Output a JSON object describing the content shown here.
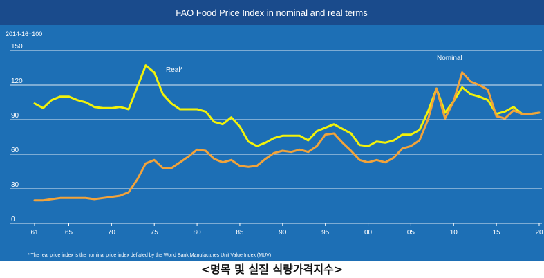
{
  "chart_data": {
    "type": "line",
    "title": "FAO Food Price Index in nominal and real terms",
    "ylabel": "2014-16=100",
    "yticks": [
      0,
      30,
      60,
      90,
      120,
      150
    ],
    "ylim": [
      0,
      150
    ],
    "xlim": [
      1961,
      2020
    ],
    "xtick_labels": [
      {
        "year": 1961,
        "label": "61"
      },
      {
        "year": 1965,
        "label": "65"
      },
      {
        "year": 1970,
        "label": "70"
      },
      {
        "year": 1975,
        "label": "75"
      },
      {
        "year": 1980,
        "label": "80"
      },
      {
        "year": 1985,
        "label": "85"
      },
      {
        "year": 1990,
        "label": "90"
      },
      {
        "year": 1995,
        "label": "95"
      },
      {
        "year": 2000,
        "label": "00"
      },
      {
        "year": 2005,
        "label": "05"
      },
      {
        "year": 2010,
        "label": "10"
      },
      {
        "year": 2015,
        "label": "15"
      },
      {
        "year": 2020,
        "label": "20"
      }
    ],
    "grid": true,
    "x": [
      1961,
      1962,
      1963,
      1964,
      1965,
      1966,
      1967,
      1968,
      1969,
      1970,
      1971,
      1972,
      1973,
      1974,
      1975,
      1976,
      1977,
      1978,
      1979,
      1980,
      1981,
      1982,
      1983,
      1984,
      1985,
      1986,
      1987,
      1988,
      1989,
      1990,
      1991,
      1992,
      1993,
      1994,
      1995,
      1996,
      1997,
      1998,
      1999,
      2000,
      2001,
      2002,
      2003,
      2004,
      2005,
      2006,
      2007,
      2008,
      2009,
      2010,
      2011,
      2012,
      2013,
      2014,
      2015,
      2016,
      2017,
      2018,
      2019,
      2020
    ],
    "series": [
      {
        "name": "Real*",
        "color": "#f2f20a",
        "values": [
          104,
          100,
          107,
          110,
          110,
          107,
          105,
          101,
          100,
          100,
          101,
          99,
          118,
          137,
          131,
          112,
          104,
          99,
          99,
          99,
          97,
          88,
          86,
          92,
          84,
          71,
          67,
          70,
          74,
          76,
          76,
          76,
          72,
          80,
          83,
          86,
          82,
          78,
          68,
          67,
          71,
          70,
          72,
          77,
          77,
          81,
          97,
          117,
          96,
          106,
          118,
          112,
          110,
          107,
          95,
          97,
          101,
          95,
          95,
          96
        ]
      },
      {
        "name": "Nominal",
        "color": "#f2a33a",
        "values": [
          20,
          20,
          21,
          22,
          22,
          22,
          22,
          21,
          22,
          23,
          24,
          27,
          38,
          52,
          55,
          48,
          48,
          53,
          58,
          64,
          63,
          56,
          53,
          55,
          50,
          49,
          50,
          56,
          61,
          63,
          62,
          64,
          62,
          67,
          77,
          78,
          70,
          63,
          55,
          53,
          55,
          53,
          57,
          65,
          67,
          72,
          90,
          117,
          91,
          106,
          131,
          123,
          120,
          116,
          93,
          91,
          98,
          95,
          95,
          96
        ]
      }
    ],
    "annotations": {
      "real_label": "Real*",
      "nominal_label": "Nominal"
    },
    "footnote": "* The real price index is the nominal price index deflated by the World Bank Manufactures Unit Value Index (MUV)"
  },
  "caption": "<명목 및 실질 식량가격지수>",
  "colors": {
    "plot_background": "#1d6fb5",
    "title_bar": "#1a4b8c",
    "grid": "#ffffff",
    "text": "#ffffff"
  }
}
